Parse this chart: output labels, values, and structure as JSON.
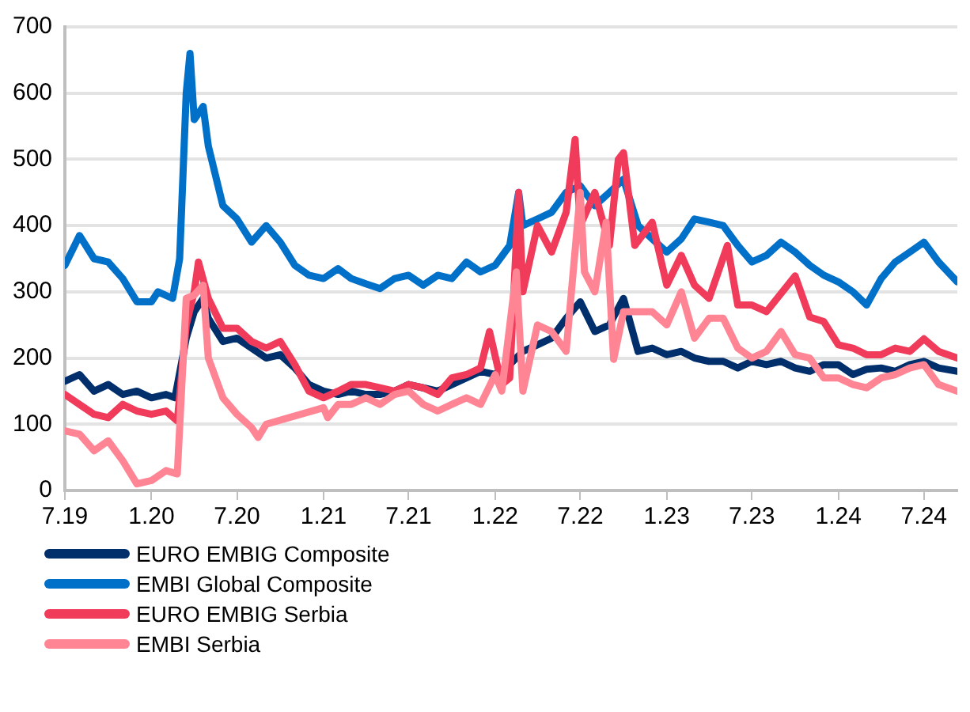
{
  "chart_data": {
    "type": "line",
    "legend": "bottom left",
    "grid": "y",
    "marker": "none",
    "line_style": "solid",
    "xlim": [
      "2019-07",
      "2024-09-10"
    ],
    "xticks": [
      {
        "value": "2019-07",
        "label": "7.19"
      },
      {
        "value": "2020-01",
        "label": "1.20"
      },
      {
        "value": "2020-07",
        "label": "7.20"
      },
      {
        "value": "2021-01",
        "label": "1.21"
      },
      {
        "value": "2021-07",
        "label": "7.21"
      },
      {
        "value": "2022-01",
        "label": "1.22"
      },
      {
        "value": "2022-07",
        "label": "7.22"
      },
      {
        "value": "2023-01",
        "label": "1.23"
      },
      {
        "value": "2023-07",
        "label": "7.23"
      },
      {
        "value": "2024-01",
        "label": "1.24"
      },
      {
        "value": "2024-07",
        "label": "7.24"
      }
    ],
    "ylim": [
      0,
      700
    ],
    "yticks": [
      0,
      100,
      200,
      300,
      400,
      500,
      600,
      700
    ],
    "series": [
      {
        "name": "EURO EMBIG Composite",
        "color": "#002f6c",
        "x": [
          "2019-07",
          "2019-08",
          "2019-09",
          "2019-10",
          "2019-11",
          "2019-12",
          "2020-01",
          "2020-02",
          "2020-02-20",
          "2020-03-15",
          "2020-04",
          "2020-04-20",
          "2020-05",
          "2020-06",
          "2020-07",
          "2020-08",
          "2020-09",
          "2020-10",
          "2020-11",
          "2020-12",
          "2021-01",
          "2021-02",
          "2021-03",
          "2021-04",
          "2021-05",
          "2021-06",
          "2021-07",
          "2021-08",
          "2021-09",
          "2021-10",
          "2021-11",
          "2021-12",
          "2022-01",
          "2022-02",
          "2022-03",
          "2022-04",
          "2022-05",
          "2022-06",
          "2022-07",
          "2022-08",
          "2022-09",
          "2022-10",
          "2022-11",
          "2022-12",
          "2023-01",
          "2023-02",
          "2023-03",
          "2023-04",
          "2023-05",
          "2023-06",
          "2023-07",
          "2023-08",
          "2023-09",
          "2023-10",
          "2023-11",
          "2023-12",
          "2024-01",
          "2024-02",
          "2024-03",
          "2024-04",
          "2024-05",
          "2024-06",
          "2024-07",
          "2024-08",
          "2024-09-10"
        ],
        "values": [
          165,
          175,
          150,
          160,
          145,
          150,
          140,
          145,
          140,
          230,
          270,
          290,
          260,
          225,
          230,
          215,
          200,
          205,
          185,
          160,
          150,
          145,
          150,
          145,
          145,
          150,
          160,
          155,
          150,
          160,
          170,
          180,
          175,
          190,
          210,
          220,
          230,
          260,
          285,
          240,
          250,
          290,
          210,
          215,
          205,
          210,
          200,
          195,
          195,
          185,
          195,
          190,
          195,
          185,
          180,
          190,
          190,
          175,
          183,
          185,
          180,
          190,
          195,
          185,
          180
        ]
      },
      {
        "name": "EMBI Global Composite",
        "color": "#0070c8",
        "x": [
          "2019-07",
          "2019-08",
          "2019-09",
          "2019-10",
          "2019-11",
          "2019-12",
          "2020-01",
          "2020-01-15",
          "2020-02-15",
          "2020-03-01",
          "2020-03-15",
          "2020-03-23",
          "2020-04",
          "2020-04-20",
          "2020-05",
          "2020-06",
          "2020-07",
          "2020-08",
          "2020-09",
          "2020-10",
          "2020-11",
          "2020-12",
          "2021-01",
          "2021-02",
          "2021-03",
          "2021-04",
          "2021-05",
          "2021-06",
          "2021-07",
          "2021-08",
          "2021-09",
          "2021-10",
          "2021-11",
          "2021-12",
          "2022-01",
          "2022-02",
          "2022-02-20",
          "2022-03",
          "2022-04",
          "2022-05",
          "2022-06",
          "2022-07",
          "2022-08",
          "2022-09",
          "2022-10",
          "2022-11",
          "2022-12",
          "2023-01",
          "2023-02",
          "2023-03",
          "2023-04",
          "2023-05",
          "2023-06",
          "2023-07",
          "2023-08",
          "2023-09",
          "2023-10",
          "2023-11",
          "2023-12",
          "2024-01",
          "2024-02",
          "2024-03",
          "2024-04",
          "2024-05",
          "2024-06",
          "2024-07",
          "2024-08",
          "2024-09-10"
        ],
        "values": [
          340,
          385,
          350,
          345,
          320,
          285,
          285,
          300,
          290,
          350,
          600,
          660,
          560,
          580,
          520,
          430,
          410,
          375,
          400,
          375,
          340,
          325,
          320,
          335,
          320,
          312,
          305,
          320,
          325,
          310,
          325,
          320,
          345,
          330,
          340,
          370,
          450,
          400,
          410,
          420,
          450,
          460,
          430,
          450,
          470,
          400,
          380,
          360,
          380,
          410,
          405,
          400,
          370,
          345,
          355,
          375,
          360,
          340,
          325,
          315,
          300,
          280,
          320,
          345,
          360,
          375,
          345,
          315
        ]
      },
      {
        "name": "EURO EMBIG Serbia",
        "color": "#f03c5a",
        "x": [
          "2019-07",
          "2019-08",
          "2019-09",
          "2019-10",
          "2019-11",
          "2019-12",
          "2020-01",
          "2020-02",
          "2020-02-25",
          "2020-03-15",
          "2020-04",
          "2020-04-10",
          "2020-05",
          "2020-06",
          "2020-07",
          "2020-08",
          "2020-09",
          "2020-10",
          "2020-11",
          "2020-12",
          "2021-01",
          "2021-02",
          "2021-03",
          "2021-04",
          "2021-05",
          "2021-06",
          "2021-07",
          "2021-08",
          "2021-09",
          "2021-10",
          "2021-11",
          "2021-12",
          "2021-12-20",
          "2022-01-15",
          "2022-02",
          "2022-02-20",
          "2022-03",
          "2022-04",
          "2022-05",
          "2022-06",
          "2022-06-20",
          "2022-07",
          "2022-08",
          "2022-09",
          "2022-09-20",
          "2022-10",
          "2022-10-25",
          "2022-12",
          "2023-01",
          "2023-02",
          "2023-03",
          "2023-04",
          "2023-05-10",
          "2023-06",
          "2023-07",
          "2023-08",
          "2023-10",
          "2023-11",
          "2023-12",
          "2024-01",
          "2024-02",
          "2024-03",
          "2024-04",
          "2024-05",
          "2024-06",
          "2024-07",
          "2024-08",
          "2024-09-10"
        ],
        "values": [
          145,
          130,
          115,
          110,
          130,
          120,
          115,
          120,
          105,
          250,
          300,
          345,
          290,
          245,
          245,
          225,
          215,
          225,
          190,
          150,
          140,
          150,
          160,
          160,
          155,
          150,
          160,
          155,
          145,
          170,
          175,
          185,
          240,
          160,
          170,
          450,
          300,
          400,
          360,
          420,
          530,
          400,
          450,
          370,
          500,
          510,
          370,
          405,
          310,
          355,
          310,
          290,
          370,
          280,
          280,
          270,
          324,
          262,
          255,
          220,
          215,
          205,
          205,
          215,
          210,
          229,
          210,
          200
        ]
      },
      {
        "name": "EMBI Serbia",
        "color": "#ff8595",
        "x": [
          "2019-07",
          "2019-08",
          "2019-09",
          "2019-10",
          "2019-11",
          "2019-12",
          "2020-01",
          "2020-02",
          "2020-02-25",
          "2020-03-15",
          "2020-04",
          "2020-04-20",
          "2020-05",
          "2020-06",
          "2020-07",
          "2020-08",
          "2020-08-15",
          "2020-09",
          "2021-01",
          "2021-01-10",
          "2021-02",
          "2021-03",
          "2021-04",
          "2021-05",
          "2021-06",
          "2021-07",
          "2021-08",
          "2021-09",
          "2021-10",
          "2021-11",
          "2021-12",
          "2022-01",
          "2022-01-15",
          "2022-02-15",
          "2022-03",
          "2022-04",
          "2022-05",
          "2022-06",
          "2022-07",
          "2022-07-10",
          "2022-08",
          "2022-08-25",
          "2022-09-10",
          "2022-10",
          "2022-11",
          "2022-12",
          "2023-01",
          "2023-02",
          "2023-03",
          "2023-04",
          "2023-05",
          "2023-06",
          "2023-07",
          "2023-08",
          "2023-09",
          "2023-10",
          "2023-11",
          "2023-12",
          "2024-01",
          "2024-02",
          "2024-03",
          "2024-04",
          "2024-05",
          "2024-06",
          "2024-07",
          "2024-08",
          "2024-09-10"
        ],
        "values": [
          90,
          85,
          60,
          75,
          45,
          10,
          15,
          30,
          25,
          290,
          295,
          310,
          200,
          140,
          115,
          95,
          80,
          100,
          125,
          110,
          130,
          130,
          140,
          130,
          145,
          150,
          130,
          120,
          130,
          140,
          130,
          175,
          150,
          330,
          150,
          250,
          240,
          210,
          450,
          330,
          300,
          405,
          198,
          270,
          270,
          270,
          250,
          300,
          230,
          260,
          260,
          215,
          200,
          210,
          240,
          205,
          200,
          170,
          170,
          160,
          155,
          170,
          175,
          185,
          190,
          160,
          150
        ]
      }
    ]
  }
}
